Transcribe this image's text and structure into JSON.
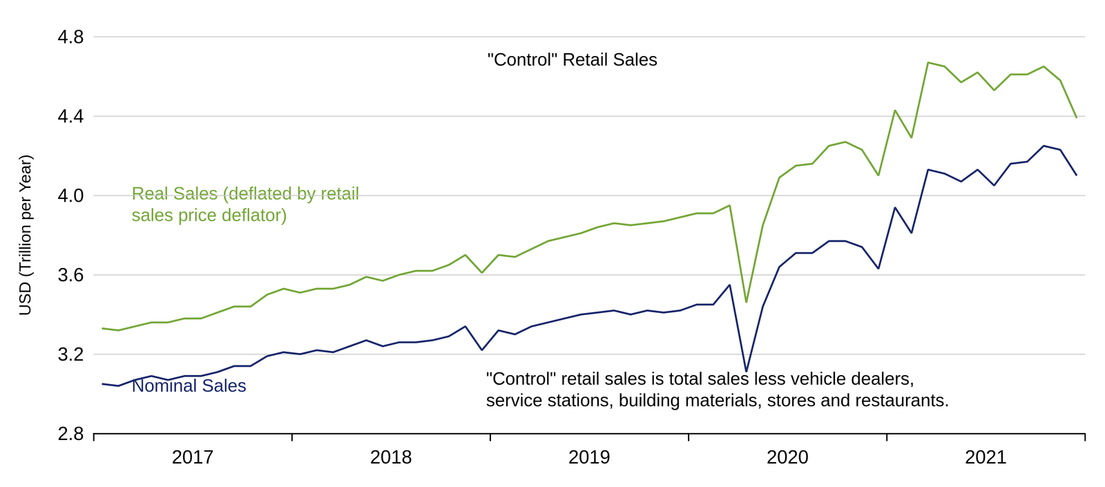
{
  "chart_data": {
    "type": "line",
    "title": "\"Control\" Retail Sales",
    "y_label": "USD (Trillion per Year)",
    "note": "\"Control\" retail sales is total sales less vehicle dealers,\nservice stations, building materials, stores and restaurants.",
    "categories": [
      null,
      null,
      null,
      null,
      null,
      "2017",
      null,
      null,
      null,
      null,
      null,
      null,
      null,
      null,
      null,
      null,
      null,
      "2018",
      null,
      null,
      null,
      null,
      null,
      null,
      null,
      null,
      null,
      null,
      null,
      "2019",
      null,
      null,
      null,
      null,
      null,
      null,
      null,
      null,
      null,
      null,
      null,
      "2020",
      null,
      null,
      null,
      null,
      null,
      null,
      null,
      null,
      null,
      null,
      null,
      "2021",
      null,
      null,
      null,
      null,
      null,
      null
    ],
    "series": [
      {
        "name": "Real Sales (deflated by retail\nsales price deflator)",
        "color": "#76a83a",
        "values": [
          3.33,
          3.32,
          3.34,
          3.36,
          3.36,
          3.38,
          3.38,
          3.41,
          3.44,
          3.44,
          3.5,
          3.53,
          3.51,
          3.53,
          3.53,
          3.55,
          3.59,
          3.57,
          3.6,
          3.62,
          3.62,
          3.65,
          3.7,
          3.61,
          3.7,
          3.69,
          3.73,
          3.77,
          3.79,
          3.81,
          3.84,
          3.86,
          3.85,
          3.86,
          3.87,
          3.89,
          3.91,
          3.91,
          3.95,
          3.46,
          3.85,
          4.09,
          4.15,
          4.16,
          4.25,
          4.27,
          4.23,
          4.1,
          4.43,
          4.29,
          4.67,
          4.65,
          4.57,
          4.62,
          4.53,
          4.61,
          4.61,
          4.65,
          4.58,
          4.39
        ]
      },
      {
        "name": "Nominal Sales",
        "color": "#1c2a6e",
        "values": [
          3.05,
          3.04,
          3.07,
          3.09,
          3.07,
          3.09,
          3.09,
          3.11,
          3.14,
          3.14,
          3.19,
          3.21,
          3.2,
          3.22,
          3.21,
          3.24,
          3.27,
          3.24,
          3.26,
          3.26,
          3.27,
          3.29,
          3.34,
          3.22,
          3.32,
          3.3,
          3.34,
          3.36,
          3.38,
          3.4,
          3.41,
          3.42,
          3.4,
          3.42,
          3.41,
          3.42,
          3.45,
          3.45,
          3.55,
          3.11,
          3.44,
          3.64,
          3.71,
          3.71,
          3.77,
          3.77,
          3.74,
          3.63,
          3.94,
          3.81,
          4.13,
          4.11,
          4.07,
          4.13,
          4.05,
          4.16,
          4.17,
          4.25,
          4.23,
          4.1
        ]
      }
    ],
    "ylim": [
      2.8,
      4.8
    ],
    "yticks": [
      2.8,
      3.2,
      3.6,
      {
        "value": 4,
        "label": "4.0"
      },
      4.4,
      4.8
    ],
    "grid": true
  }
}
